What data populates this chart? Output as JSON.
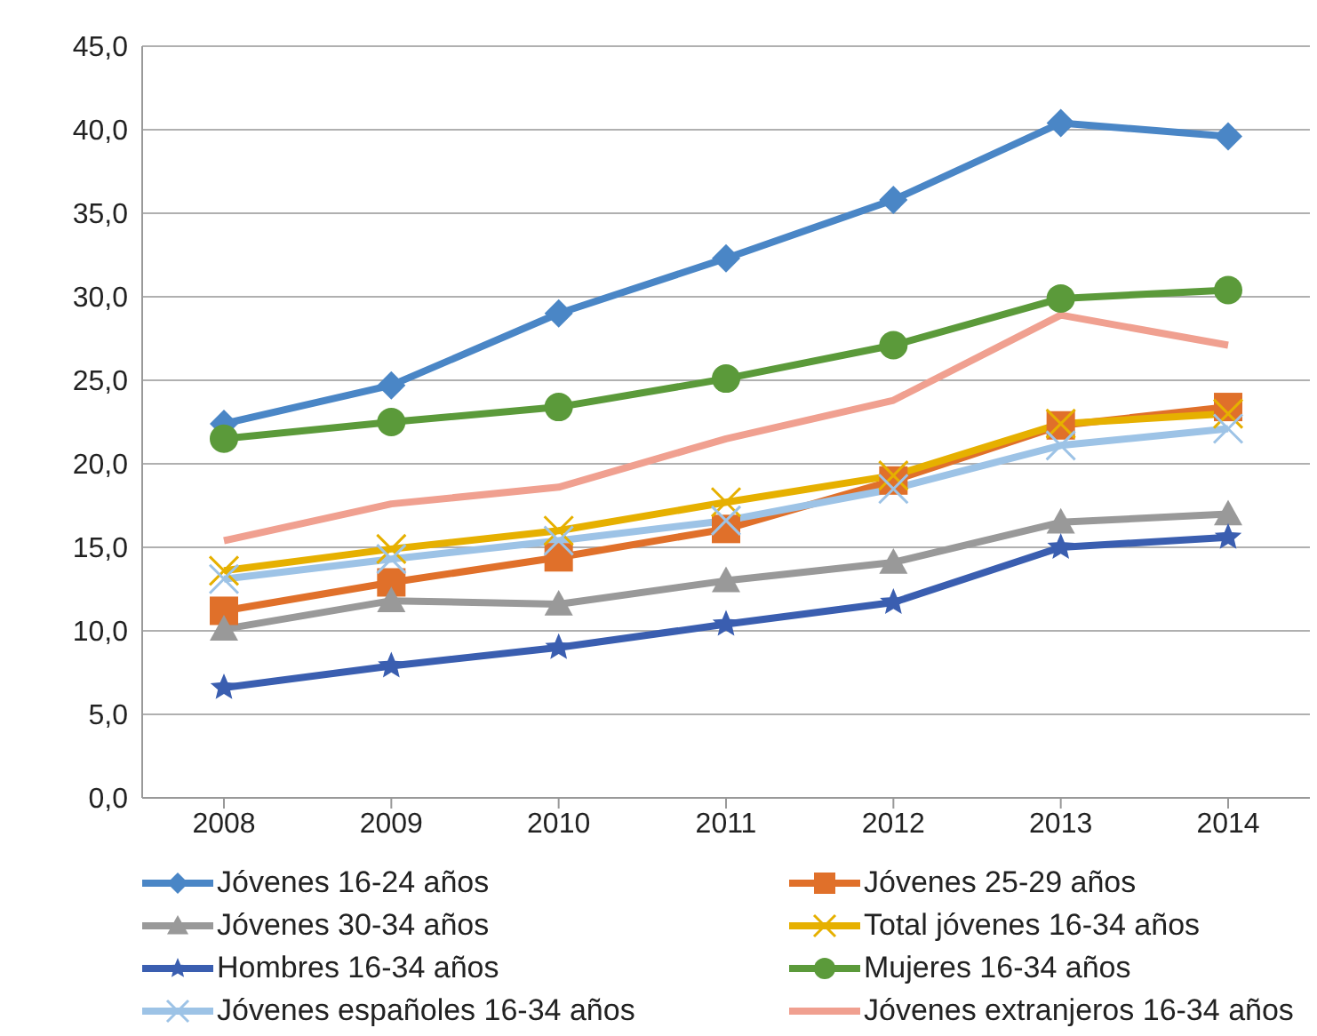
{
  "chart_data": {
    "type": "line",
    "categories": [
      "2008",
      "2009",
      "2010",
      "2011",
      "2012",
      "2013",
      "2014"
    ],
    "ylim": [
      0,
      45
    ],
    "yticks": [
      {
        "value": 0,
        "label": "0,0"
      },
      {
        "value": 5,
        "label": "5,0"
      },
      {
        "value": 10,
        "label": "10,0"
      },
      {
        "value": 15,
        "label": "15,0"
      },
      {
        "value": 20,
        "label": "20,0"
      },
      {
        "value": 25,
        "label": "25,0"
      },
      {
        "value": 30,
        "label": "30,0"
      },
      {
        "value": 35,
        "label": "35,0"
      },
      {
        "value": 40,
        "label": "40,0"
      },
      {
        "value": 45,
        "label": "45,0"
      }
    ],
    "grid": "y",
    "legend": "bottom",
    "series": [
      {
        "name": "Jóvenes 16-24 años",
        "color": "#4a86c6",
        "marker": "diamond",
        "values": [
          22.4,
          24.7,
          29.0,
          32.3,
          35.8,
          40.4,
          39.6
        ]
      },
      {
        "name": "Jóvenes 25-29 años",
        "color": "#e0702a",
        "marker": "square",
        "values": [
          11.2,
          12.9,
          14.4,
          16.1,
          19.0,
          22.3,
          23.4
        ]
      },
      {
        "name": "Jóvenes 30-34 años",
        "color": "#999999",
        "marker": "triangle",
        "values": [
          10.1,
          11.8,
          11.6,
          13.0,
          14.1,
          16.5,
          17.0
        ]
      },
      {
        "name": "Total jóvenes 16-34 años",
        "color": "#e6b000",
        "marker": "cross",
        "values": [
          13.6,
          14.9,
          16.0,
          17.7,
          19.3,
          22.4,
          23.0
        ]
      },
      {
        "name": "Hombres 16-34 años",
        "color": "#3a5eb0",
        "marker": "star",
        "values": [
          6.6,
          7.9,
          9.0,
          10.4,
          11.7,
          15.0,
          15.6
        ]
      },
      {
        "name": "Mujeres 16-34 años",
        "color": "#5b9a3a",
        "marker": "circle",
        "values": [
          21.5,
          22.5,
          23.4,
          25.1,
          27.1,
          29.9,
          30.4
        ]
      },
      {
        "name": "Jóvenes españoles 16-34 años",
        "color": "#9dc3e6",
        "marker": "cross",
        "values": [
          13.1,
          14.3,
          15.4,
          16.6,
          18.5,
          21.1,
          22.1
        ]
      },
      {
        "name": "Jóvenes extranjeros 16-34 años",
        "color": "#f0a090",
        "marker": "none",
        "values": [
          15.4,
          17.6,
          18.6,
          21.5,
          23.8,
          28.9,
          27.1
        ]
      }
    ]
  }
}
